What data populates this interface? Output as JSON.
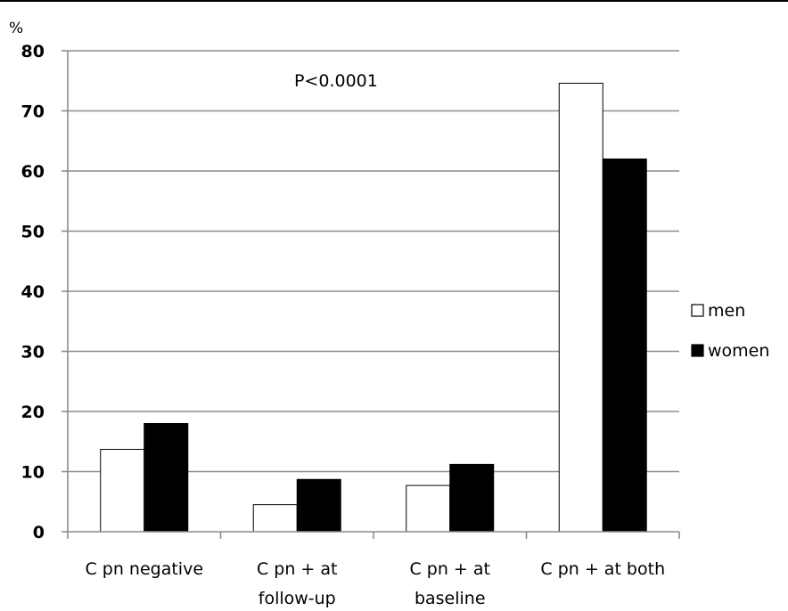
{
  "chart_data": {
    "type": "bar",
    "title": "",
    "xlabel": "",
    "ylabel": "%",
    "ylim": [
      0,
      80
    ],
    "yticks": [
      0,
      10,
      20,
      30,
      40,
      50,
      60,
      70,
      80
    ],
    "grid": true,
    "legend_position": "right",
    "annotation": "P<0.0001",
    "categories": [
      [
        "C pn negative"
      ],
      [
        "C pn + at",
        "follow-up"
      ],
      [
        "C pn + at",
        "baseline"
      ],
      [
        "C pn + at both"
      ]
    ],
    "series": [
      {
        "name": "men",
        "color": "#ffffff",
        "values": [
          13.7,
          4.5,
          7.7,
          74.6
        ]
      },
      {
        "name": "women",
        "color": "#000000",
        "values": [
          18.0,
          8.7,
          11.2,
          62.0
        ]
      }
    ]
  }
}
